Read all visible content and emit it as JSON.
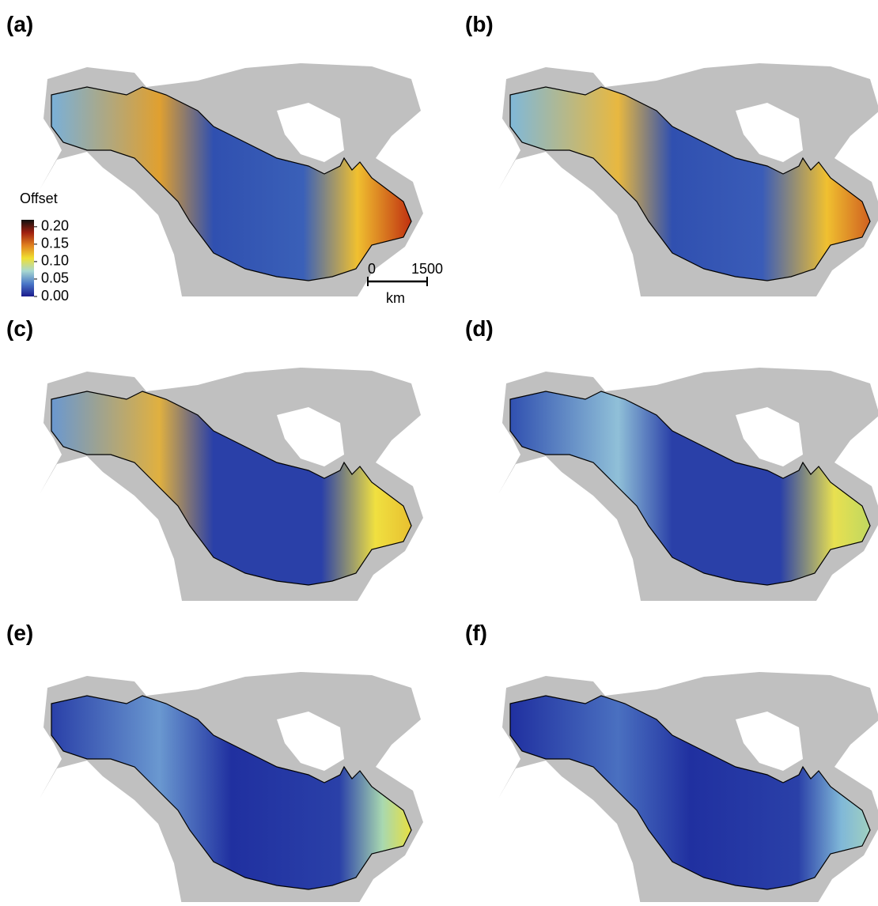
{
  "panels": [
    {
      "label": "(a)"
    },
    {
      "label": "(b)"
    },
    {
      "label": "(c)"
    },
    {
      "label": "(d)"
    },
    {
      "label": "(e)"
    },
    {
      "label": "(f)"
    }
  ],
  "legend": {
    "title": "Offset",
    "ticks": [
      {
        "value": 0.2,
        "label": "0.20"
      },
      {
        "value": 0.15,
        "label": "0.15"
      },
      {
        "value": 0.1,
        "label": "0.10"
      },
      {
        "value": 0.05,
        "label": "0.05"
      },
      {
        "value": 0,
        "label": "0.00"
      }
    ],
    "lim": [
      0,
      0.22
    ],
    "colors": [
      "#1a1a8c",
      "#4a78c8",
      "#a8d8d0",
      "#f0e030",
      "#e08020",
      "#a02010",
      "#101010"
    ]
  },
  "scale_bar": {
    "ticks": [
      0,
      1500
    ],
    "unit": "km"
  }
}
